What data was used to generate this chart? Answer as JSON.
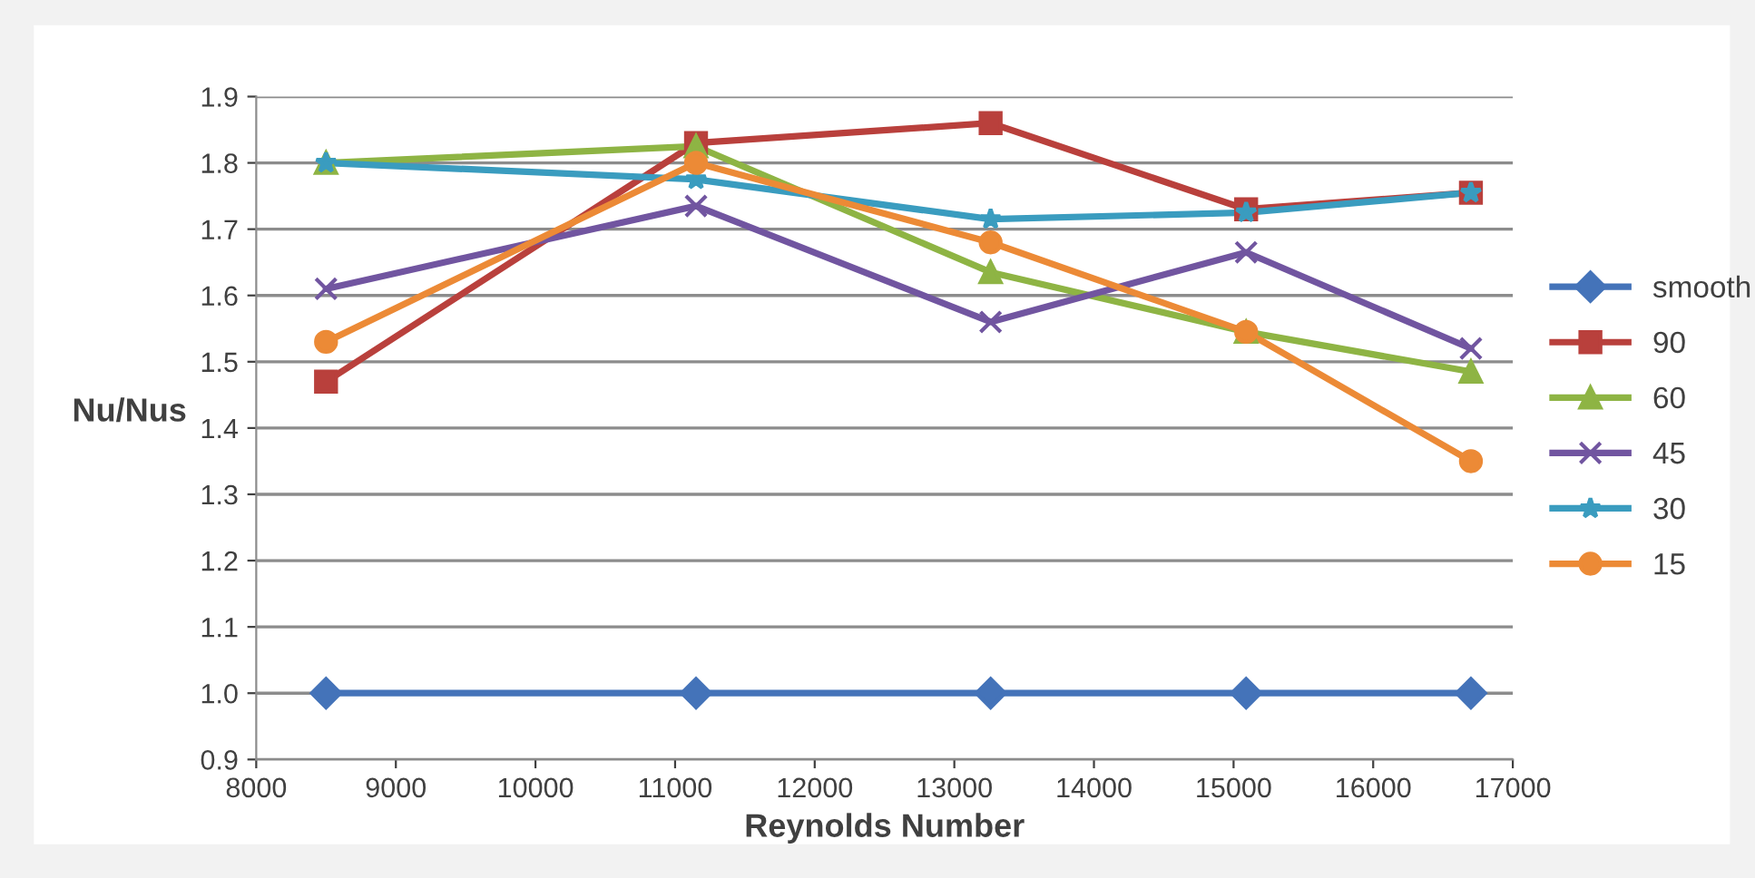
{
  "chart_data": {
    "type": "line",
    "xlabel": "Reynolds Number",
    "ylabel": "Nu/Nus",
    "x": [
      8500,
      11150,
      13260,
      15090,
      16700
    ],
    "series": [
      {
        "name": "smooth",
        "color": "#4473b9",
        "marker": "diamond",
        "values": [
          1.0,
          1.0,
          1.0,
          1.0,
          1.0
        ]
      },
      {
        "name": "90",
        "color": "#b9403c",
        "marker": "square",
        "values": [
          1.47,
          1.83,
          1.86,
          1.73,
          1.755
        ]
      },
      {
        "name": "60",
        "color": "#8eb444",
        "marker": "triangle",
        "values": [
          1.8,
          1.825,
          1.635,
          1.545,
          1.485
        ]
      },
      {
        "name": "45",
        "color": "#7155a0",
        "marker": "cross",
        "values": [
          1.61,
          1.735,
          1.56,
          1.665,
          1.52
        ]
      },
      {
        "name": "30",
        "color": "#3a9cbf",
        "marker": "star",
        "values": [
          1.8,
          1.775,
          1.715,
          1.725,
          1.755
        ]
      },
      {
        "name": "15",
        "color": "#ec8a36",
        "marker": "circle",
        "values": [
          1.53,
          1.8,
          1.68,
          1.545,
          1.35
        ]
      }
    ],
    "xlim": [
      8000,
      17000
    ],
    "xticks": [
      8000,
      9000,
      10000,
      11000,
      12000,
      13000,
      14000,
      15000,
      16000,
      17000
    ],
    "ylim": [
      0.9,
      1.9
    ],
    "yticks": [
      {
        "value": 0.9,
        "label": "0.9"
      },
      {
        "value": 1.0,
        "label": "1.0"
      },
      {
        "value": 1.1,
        "label": "1.1"
      },
      {
        "value": 1.2,
        "label": "1.2"
      },
      {
        "value": 1.3,
        "label": "1.3"
      },
      {
        "value": 1.4,
        "label": "1.4"
      },
      {
        "value": 1.5,
        "label": "1.5"
      },
      {
        "value": 1.6,
        "label": "1.6"
      },
      {
        "value": 1.7,
        "label": "1.7"
      },
      {
        "value": 1.8,
        "label": "1.8"
      },
      {
        "value": 1.9,
        "label": "1.9"
      }
    ],
    "grid": "y",
    "legend": "right",
    "line_style": "solid"
  }
}
